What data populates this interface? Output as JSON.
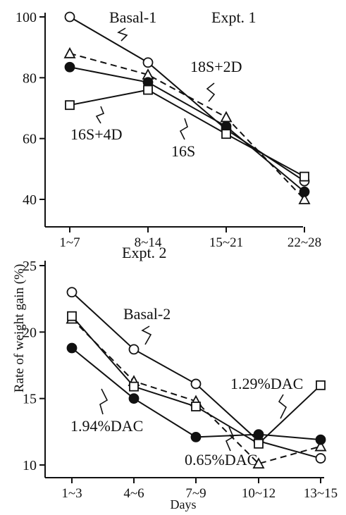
{
  "chart_data": [
    {
      "type": "line",
      "title": "Expt. 1",
      "categories": [
        "1~7",
        "8~14",
        "15~21",
        "22~28"
      ],
      "yticks": [
        "100",
        "80",
        "60",
        "40"
      ],
      "ylim": [
        35,
        100
      ],
      "series": [
        {
          "name": "Basal-1",
          "marker": "open-circle",
          "dash": false,
          "values": [
            100,
            85,
            63,
            46
          ]
        },
        {
          "name": "18S+2D",
          "marker": "open-triangle",
          "dash": true,
          "values": [
            88,
            81,
            67,
            40
          ]
        },
        {
          "name": "",
          "marker": "filled-circle",
          "dash": false,
          "values": [
            83.5,
            78.5,
            64,
            42.5
          ]
        },
        {
          "name": "16S+4D",
          "marker": "open-square",
          "dash": false,
          "values": [
            71,
            76,
            61.5,
            47.5
          ]
        }
      ],
      "annotations": [
        "Basal-1",
        "18S+2D",
        "16S+4D",
        "16S"
      ]
    },
    {
      "type": "line",
      "title": "Expt. 2",
      "categories": [
        "1~3",
        "4~6",
        "7~9",
        "10~12",
        "13~15"
      ],
      "yticks": [
        "25",
        "20",
        "15",
        "10"
      ],
      "ylim": [
        9,
        25
      ],
      "xlabel": "Days",
      "series": [
        {
          "name": "Basal-2",
          "marker": "open-circle",
          "dash": false,
          "values": [
            23,
            18.7,
            16.1,
            11.8,
            10.5
          ]
        },
        {
          "name": "0.65%DAC",
          "marker": "open-triangle",
          "dash": true,
          "values": [
            21,
            16.3,
            14.8,
            10.1,
            11.4
          ]
        },
        {
          "name": "1.29%DAC",
          "marker": "open-square",
          "dash": false,
          "values": [
            21.2,
            15.9,
            14.4,
            11.6,
            16
          ]
        },
        {
          "name": "1.94%DAC",
          "marker": "filled-circle",
          "dash": false,
          "values": [
            18.8,
            15,
            12.1,
            12.3,
            11.9
          ]
        }
      ],
      "annotations": [
        "Basal-2",
        "1.29%DAC",
        "1.94%DAC",
        "0.65%DAC"
      ]
    }
  ],
  "ylabel": "Rate of weight gain (%)"
}
